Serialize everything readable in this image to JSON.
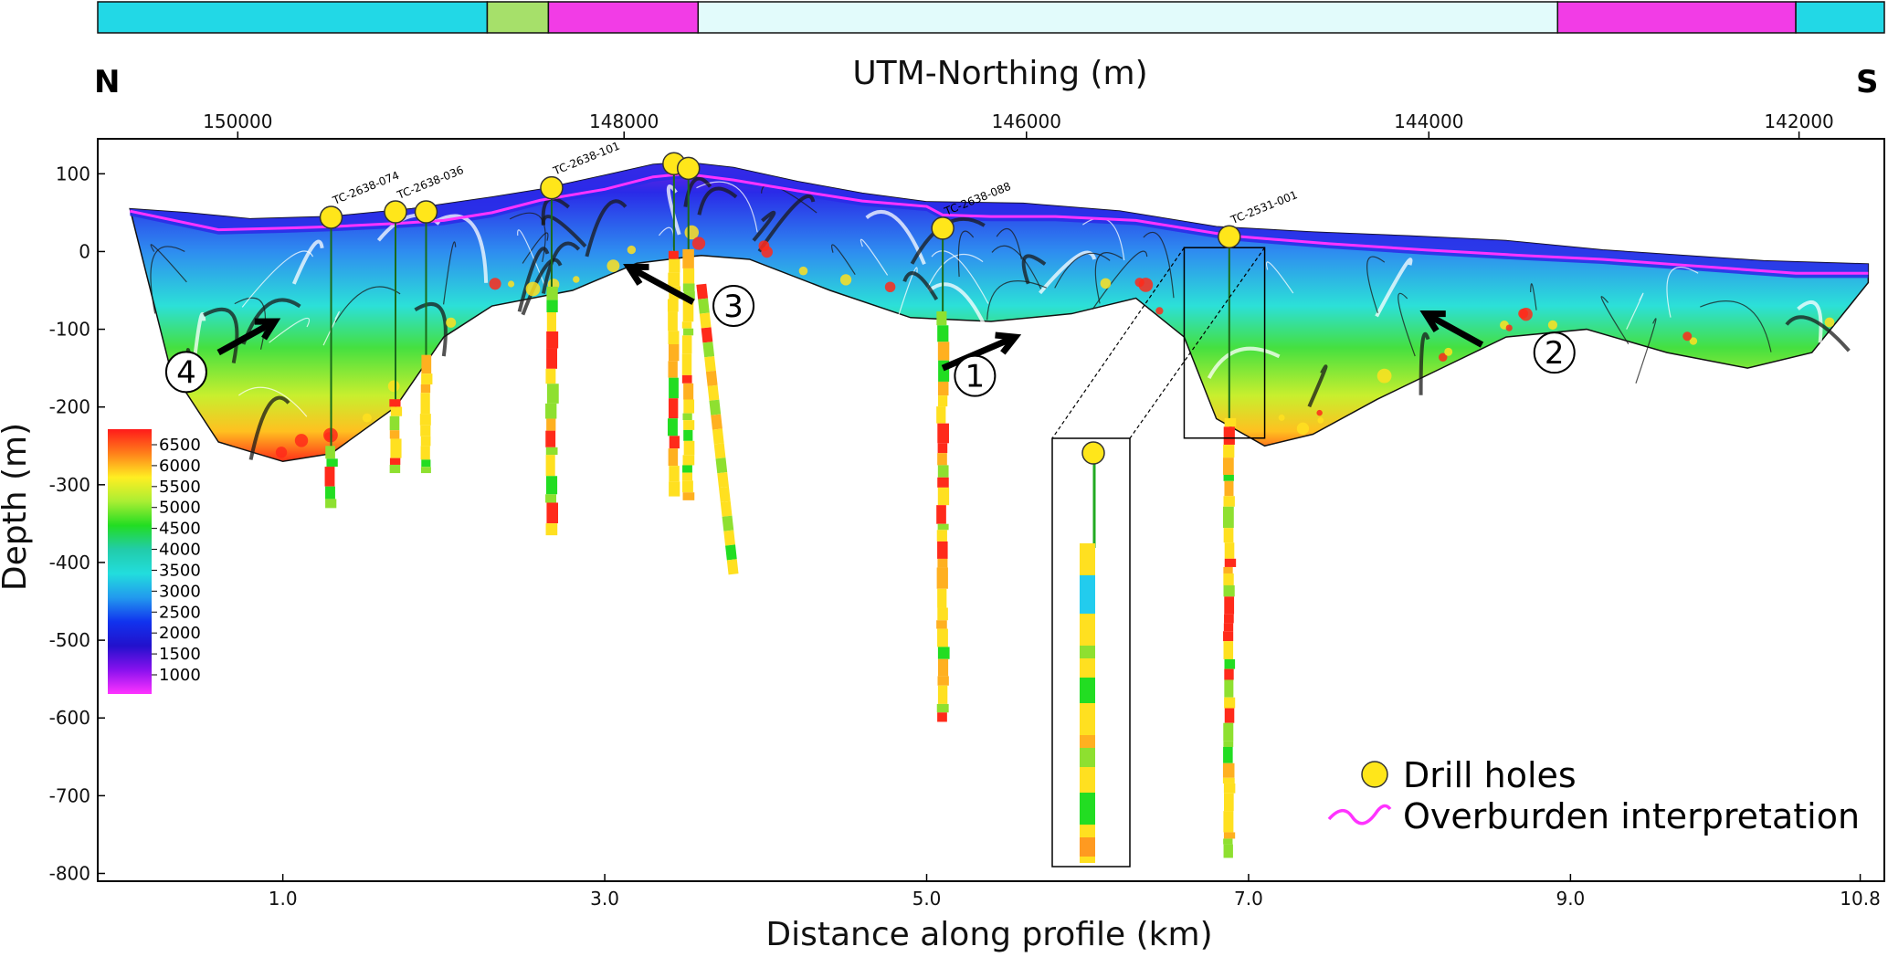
{
  "chart_data": {
    "type": "cross-section",
    "direction_left": "N",
    "direction_right": "S",
    "x_title": "Distance along profile (km)",
    "y_title": "Depth (m)",
    "top_axis_title": "UTM-Northing (m)",
    "xlim": [
      -0.15,
      10.95
    ],
    "ylim": [
      -810,
      145
    ],
    "x_ticks": [
      1.0,
      3.0,
      5.0,
      7.0,
      9.0,
      10.8
    ],
    "x_tick_labels": [
      "1.0",
      "3.0",
      "5.0",
      "7.0",
      "9.0",
      "10.8"
    ],
    "y_ticks": [
      100,
      0,
      -100,
      -200,
      -300,
      -400,
      -500,
      -600,
      -700,
      -800
    ],
    "y_tick_labels": [
      "100",
      "0",
      "-100",
      "-200",
      "-300",
      "-400",
      "-500",
      "-600",
      "-700",
      "-800"
    ],
    "top_ticks": [
      {
        "label": "150000",
        "x": 0.72
      },
      {
        "label": "148000",
        "x": 3.12
      },
      {
        "label": "146000",
        "x": 5.62
      },
      {
        "label": "144000",
        "x": 8.12
      },
      {
        "label": "142000",
        "x": 10.42
      }
    ],
    "geology_bar": [
      {
        "x0": -0.15,
        "x1": 2.27,
        "color": "#22d8e6"
      },
      {
        "x0": 2.27,
        "x1": 2.65,
        "color": "#a6e06a"
      },
      {
        "x0": 2.65,
        "x1": 3.58,
        "color": "#f23ce6"
      },
      {
        "x0": 3.58,
        "x1": 8.92,
        "color": "#e2fbfb"
      },
      {
        "x0": 8.92,
        "x1": 10.4,
        "color": "#f23ce6"
      },
      {
        "x0": 10.4,
        "x1": 10.95,
        "color": "#22d8e6"
      }
    ],
    "colorbar": {
      "ticks": [
        "6500",
        "6000",
        "5500",
        "5000",
        "4500",
        "4000",
        "3500",
        "3000",
        "2500",
        "2000",
        "1500",
        "1000"
      ],
      "colors": [
        "#ff1a1a",
        "#ff7f1a",
        "#ffee22",
        "#aaee33",
        "#22dd22",
        "#22ccaa",
        "#22dddd",
        "#2299ee",
        "#1133ee",
        "#2211cc",
        "#8811ee",
        "#ff33ff"
      ]
    },
    "overburden_line": [
      [
        0.05,
        52
      ],
      [
        0.6,
        28
      ],
      [
        1.0,
        30
      ],
      [
        1.3,
        32
      ],
      [
        1.7,
        36
      ],
      [
        2.0,
        40
      ],
      [
        2.3,
        50
      ],
      [
        2.6,
        66
      ],
      [
        3.0,
        80
      ],
      [
        3.3,
        96
      ],
      [
        3.5,
        100
      ],
      [
        3.8,
        92
      ],
      [
        4.2,
        78
      ],
      [
        4.6,
        65
      ],
      [
        5.0,
        58
      ],
      [
        5.1,
        47
      ],
      [
        5.4,
        45
      ],
      [
        5.8,
        45
      ],
      [
        6.3,
        40
      ],
      [
        6.9,
        20
      ],
      [
        7.5,
        10
      ],
      [
        8.1,
        2
      ],
      [
        8.7,
        -5
      ],
      [
        9.2,
        -10
      ],
      [
        9.6,
        -16
      ],
      [
        10.0,
        -22
      ],
      [
        10.4,
        -28
      ],
      [
        10.85,
        -28
      ]
    ],
    "topography": [
      [
        0.05,
        55
      ],
      [
        0.4,
        50
      ],
      [
        0.8,
        42
      ],
      [
        1.3,
        45
      ],
      [
        1.8,
        55
      ],
      [
        2.3,
        70
      ],
      [
        2.6,
        80
      ],
      [
        3.0,
        98
      ],
      [
        3.3,
        112
      ],
      [
        3.5,
        115
      ],
      [
        3.8,
        108
      ],
      [
        4.2,
        90
      ],
      [
        4.6,
        75
      ],
      [
        5.0,
        64
      ],
      [
        5.6,
        62
      ],
      [
        6.2,
        52
      ],
      [
        6.8,
        32
      ],
      [
        7.4,
        25
      ],
      [
        8.0,
        20
      ],
      [
        8.6,
        14
      ],
      [
        9.2,
        2
      ],
      [
        9.7,
        -5
      ],
      [
        10.2,
        -12
      ],
      [
        10.85,
        -16
      ]
    ],
    "model_bottom": [
      [
        0.05,
        55
      ],
      [
        0.3,
        -150
      ],
      [
        0.6,
        -245
      ],
      [
        1.0,
        -270
      ],
      [
        1.3,
        -260
      ],
      [
        1.7,
        -200
      ],
      [
        2.0,
        -110
      ],
      [
        2.3,
        -70
      ],
      [
        2.8,
        -50
      ],
      [
        3.2,
        -15
      ],
      [
        3.6,
        -5
      ],
      [
        3.9,
        -10
      ],
      [
        4.4,
        -50
      ],
      [
        4.9,
        -85
      ],
      [
        5.4,
        -90
      ],
      [
        5.9,
        -80
      ],
      [
        6.3,
        -60
      ],
      [
        6.6,
        -110
      ],
      [
        6.8,
        -215
      ],
      [
        7.1,
        -250
      ],
      [
        7.4,
        -235
      ],
      [
        7.8,
        -190
      ],
      [
        8.2,
        -150
      ],
      [
        8.6,
        -110
      ],
      [
        9.1,
        -100
      ],
      [
        9.6,
        -130
      ],
      [
        10.1,
        -150
      ],
      [
        10.5,
        -130
      ],
      [
        10.85,
        -40
      ]
    ],
    "drill_holes": [
      {
        "name": "TC-2638-074",
        "x": 1.3,
        "collar": 44,
        "bottom": -330
      },
      {
        "name": "TC-2638-036",
        "x": 1.7,
        "collar": 51,
        "bottom": -285
      },
      {
        "name": "",
        "x": 1.89,
        "collar": 51,
        "bottom": -285
      },
      {
        "name": "TC-2638-101",
        "x": 2.67,
        "collar": 82,
        "bottom": -365
      },
      {
        "name": "",
        "x": 3.43,
        "collar": 113,
        "bottom": -315
      },
      {
        "name": "",
        "x": 3.52,
        "collar": 107,
        "bottom": -320
      },
      {
        "name": "TC-2638-088",
        "x": 5.1,
        "collar": 30,
        "bottom": -605
      },
      {
        "name": "TC-2531-001",
        "x": 6.88,
        "collar": 19,
        "bottom": -780
      }
    ],
    "drill_hole_traces": [
      {
        "x0": 3.52,
        "y0": 107,
        "x1": 3.8,
        "y1": -415
      }
    ],
    "callouts": [
      {
        "label": "1",
        "x": 5.3,
        "y": -160
      },
      {
        "label": "2",
        "x": 8.9,
        "y": -130
      },
      {
        "label": "3",
        "x": 3.8,
        "y": -70
      },
      {
        "label": "4",
        "x": 0.4,
        "y": -155
      }
    ],
    "inset": {
      "src_x0": 6.6,
      "src_x1": 7.1,
      "src_y0": 5,
      "src_y1": -240
    },
    "legend": {
      "drill_holes": "Drill holes",
      "overburden": "Overburden interpretation"
    }
  }
}
